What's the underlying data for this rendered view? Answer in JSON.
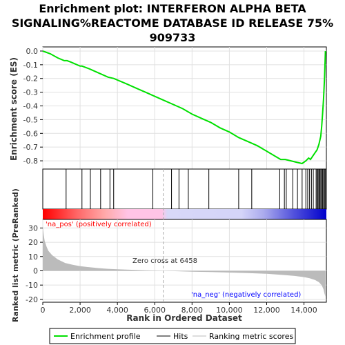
{
  "chart_data": {
    "type": "line",
    "title": [
      "Enrichment plot: INTERFERON ALPHA BETA",
      "SIGNALING%REACTOME DATABASE ID RELEASE 75%",
      "909733"
    ],
    "xlabel": "Rank in Ordered Dataset",
    "ylabel_top": "Enrichment score (ES)",
    "ylabel_bottom": "Ranked list metric (PreRanked)",
    "x_ticks": [
      0,
      2000,
      4000,
      6000,
      8000,
      10000,
      12000,
      14000
    ],
    "x_tick_labels": [
      "0",
      "2,000",
      "4,000",
      "6,000",
      "8,000",
      "10,000",
      "12,000",
      "14,000"
    ],
    "xlim": [
      0,
      15200
    ],
    "es_yticks": [
      0.0,
      -0.1,
      -0.2,
      -0.3,
      -0.4,
      -0.5,
      -0.6,
      -0.7,
      -0.8
    ],
    "es_ytick_labels": [
      "0.0",
      "-0.1",
      "-0.2",
      "-0.3",
      "-0.4",
      "-0.5",
      "-0.6",
      "-0.7",
      "-0.8"
    ],
    "es_ylim": [
      -0.86,
      0.03
    ],
    "metric_yticks": [
      30,
      20,
      10,
      0,
      -10,
      -20
    ],
    "metric_ytick_labels": [
      "30",
      "20",
      "10",
      "0",
      "-10",
      "-20"
    ],
    "metric_ylim": [
      -22,
      36
    ],
    "enrichment_profile": {
      "x": [
        0,
        400,
        800,
        1150,
        1300,
        1500,
        2000,
        2100,
        2500,
        3000,
        3500,
        3800,
        4500,
        5000,
        5500,
        6000,
        6500,
        7000,
        7500,
        8000,
        8500,
        9000,
        9500,
        10000,
        10500,
        11000,
        11500,
        12000,
        12500,
        12750,
        13000,
        13300,
        13600,
        13900,
        14100,
        14250,
        14350,
        14450,
        14600,
        14700,
        14800,
        14900,
        14950,
        15000,
        15050,
        15100,
        15130,
        15150
      ],
      "y": [
        0.0,
        -0.02,
        -0.05,
        -0.07,
        -0.07,
        -0.08,
        -0.11,
        -0.11,
        -0.13,
        -0.16,
        -0.19,
        -0.2,
        -0.24,
        -0.27,
        -0.3,
        -0.33,
        -0.36,
        -0.39,
        -0.42,
        -0.46,
        -0.49,
        -0.52,
        -0.56,
        -0.59,
        -0.63,
        -0.66,
        -0.69,
        -0.73,
        -0.77,
        -0.79,
        -0.79,
        -0.8,
        -0.81,
        -0.82,
        -0.8,
        -0.78,
        -0.79,
        -0.77,
        -0.74,
        -0.72,
        -0.68,
        -0.62,
        -0.55,
        -0.45,
        -0.35,
        -0.2,
        -0.08,
        0.0
      ]
    },
    "hits": [
      1250,
      2100,
      2550,
      3100,
      3600,
      3800,
      5900,
      6900,
      7300,
      7800,
      8900,
      10500,
      11200,
      12700,
      12950,
      13050,
      13400,
      13650,
      13900,
      14100,
      14200,
      14300,
      14400,
      14500,
      14650,
      14700,
      14750,
      14800,
      14850,
      14900,
      14950,
      15000,
      15050,
      15100,
      15150
    ],
    "ranked_metric": {
      "x": [
        0,
        50,
        100,
        200,
        300,
        500,
        800,
        1200,
        1600,
        2000,
        2500,
        3000,
        3500,
        4000,
        4500,
        5000,
        5500,
        6000,
        6458,
        7000,
        8000,
        9000,
        10000,
        11000,
        12000,
        12500,
        13000,
        13500,
        14000,
        14300,
        14600,
        14800,
        14950,
        15050,
        15100,
        15150
      ],
      "y": [
        31,
        25,
        21,
        17,
        14,
        11,
        8,
        5.5,
        4.2,
        3.3,
        2.5,
        1.9,
        1.4,
        1.1,
        0.8,
        0.6,
        0.4,
        0.2,
        0,
        -0.2,
        -0.6,
        -0.9,
        -1.2,
        -1.6,
        -2.1,
        -2.5,
        -3.0,
        -3.6,
        -4.4,
        -5.2,
        -6.5,
        -8.0,
        -10,
        -13,
        -16,
        -18
      ]
    },
    "zero_cross_label": "Zero cross at 6458",
    "zero_cross_x": 6458,
    "pos_label": "'na_pos' (positively correlated)",
    "neg_label": "'na_neg' (negatively correlated)",
    "legend": [
      "Enrichment profile",
      "Hits",
      "Ranking metric scores"
    ],
    "grid": true,
    "colors": {
      "profile": "#00e000",
      "hits": "#000000",
      "metric_fill": "#bbbbbb",
      "pos_text": "#ff0000",
      "neg_text": "#0000ff",
      "zero_line": "#aaaaaa"
    }
  }
}
